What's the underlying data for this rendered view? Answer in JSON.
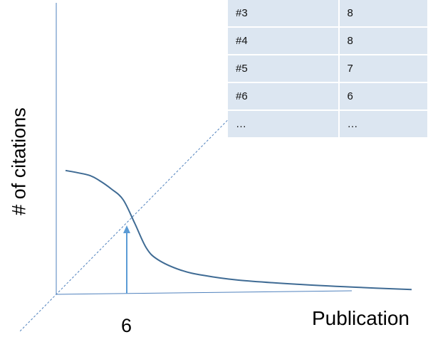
{
  "chart_data": {
    "type": "line",
    "ylabel": "# of citations",
    "xlabel": "Publication",
    "x_tick_labels": [
      "6"
    ],
    "highlight": {
      "x": 6,
      "y": 6
    },
    "curve": {
      "x": [
        0,
        2,
        3,
        4,
        5,
        6,
        7,
        8,
        10,
        12,
        15,
        20,
        25,
        30
      ],
      "y": [
        10.5,
        10.1,
        9.6,
        8.9,
        8.0,
        6.0,
        3.9,
        2.9,
        2.0,
        1.55,
        1.15,
        0.8,
        0.55,
        0.35
      ]
    },
    "diagonal": "y = x",
    "table": {
      "rows": [
        [
          "#3",
          "8"
        ],
        [
          "#4",
          "8"
        ],
        [
          "#5",
          "7"
        ],
        [
          "#6",
          "6"
        ],
        [
          "…",
          "…"
        ]
      ]
    },
    "colors": {
      "curve": "#3f6b94",
      "axes": "#4f81bd",
      "diagonal": "#4f81bd",
      "arrow": "#5b9bd5",
      "table_fill": "#dce6f1"
    }
  }
}
